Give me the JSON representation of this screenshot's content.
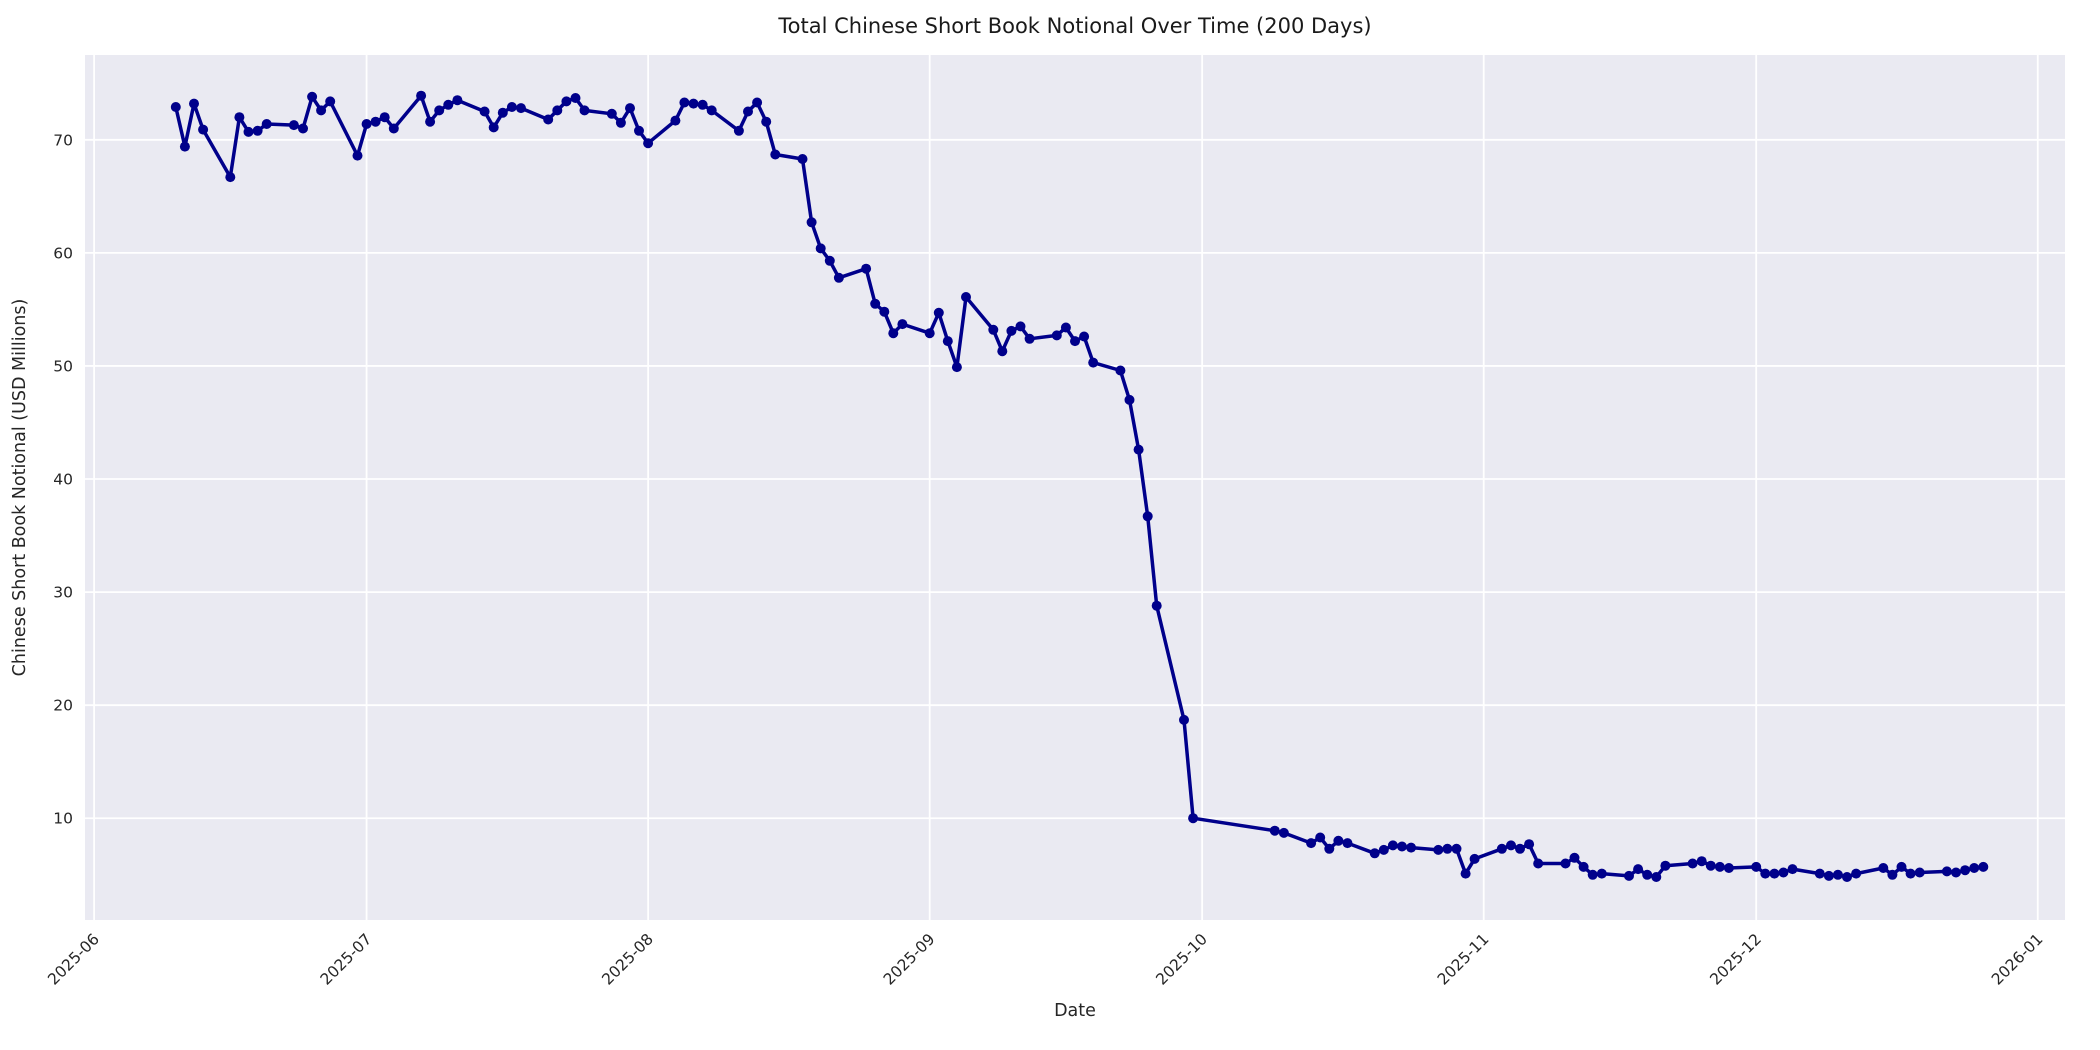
{
  "chart_data": {
    "type": "line",
    "title": "Total Chinese Short Book Notional Over Time (200 Days)",
    "xlabel": "Date",
    "ylabel": "Chinese Short Book Notional (USD Millions)",
    "grid": true,
    "legend_position": "none",
    "plot_bg": "#eaeaf2",
    "fig_bg": "#ffffff",
    "grid_color": "#ffffff",
    "line_color": "#00008b",
    "marker": "circle",
    "xlim": [
      "2025-05-31",
      "2026-01-04"
    ],
    "ylim": [
      1.0,
      77.5
    ],
    "y_ticks": [
      10,
      20,
      30,
      40,
      50,
      60,
      70
    ],
    "x_ticks": [
      {
        "date": "2025-06-01",
        "label": "2025-06"
      },
      {
        "date": "2025-07-01",
        "label": "2025-07"
      },
      {
        "date": "2025-08-01",
        "label": "2025-08"
      },
      {
        "date": "2025-09-01",
        "label": "2025-09"
      },
      {
        "date": "2025-10-01",
        "label": "2025-10"
      },
      {
        "date": "2025-11-01",
        "label": "2025-11"
      },
      {
        "date": "2025-12-01",
        "label": "2025-12"
      },
      {
        "date": "2026-01-01",
        "label": "2026-01"
      }
    ],
    "series": [
      {
        "name": "Total Chinese Short Book Notional",
        "dates": [
          "2025-06-10",
          "2025-06-11",
          "2025-06-12",
          "2025-06-13",
          "2025-06-16",
          "2025-06-17",
          "2025-06-18",
          "2025-06-19",
          "2025-06-20",
          "2025-06-23",
          "2025-06-24",
          "2025-06-25",
          "2025-06-26",
          "2025-06-27",
          "2025-06-30",
          "2025-07-01",
          "2025-07-02",
          "2025-07-03",
          "2025-07-04",
          "2025-07-07",
          "2025-07-08",
          "2025-07-09",
          "2025-07-10",
          "2025-07-11",
          "2025-07-14",
          "2025-07-15",
          "2025-07-16",
          "2025-07-17",
          "2025-07-18",
          "2025-07-21",
          "2025-07-22",
          "2025-07-23",
          "2025-07-24",
          "2025-07-25",
          "2025-07-28",
          "2025-07-29",
          "2025-07-30",
          "2025-07-31",
          "2025-08-01",
          "2025-08-04",
          "2025-08-05",
          "2025-08-06",
          "2025-08-07",
          "2025-08-08",
          "2025-08-11",
          "2025-08-12",
          "2025-08-13",
          "2025-08-14",
          "2025-08-15",
          "2025-08-18",
          "2025-08-19",
          "2025-08-20",
          "2025-08-21",
          "2025-08-22",
          "2025-08-25",
          "2025-08-26",
          "2025-08-27",
          "2025-08-28",
          "2025-08-29",
          "2025-09-01",
          "2025-09-02",
          "2025-09-03",
          "2025-09-04",
          "2025-09-05",
          "2025-09-08",
          "2025-09-09",
          "2025-09-10",
          "2025-09-11",
          "2025-09-12",
          "2025-09-15",
          "2025-09-16",
          "2025-09-17",
          "2025-09-18",
          "2025-09-19",
          "2025-09-22",
          "2025-09-23",
          "2025-09-24",
          "2025-09-25",
          "2025-09-26",
          "2025-09-29",
          "2025-09-30",
          "2025-10-09",
          "2025-10-10",
          "2025-10-13",
          "2025-10-14",
          "2025-10-15",
          "2025-10-16",
          "2025-10-17",
          "2025-10-20",
          "2025-10-21",
          "2025-10-22",
          "2025-10-23",
          "2025-10-24",
          "2025-10-27",
          "2025-10-28",
          "2025-10-29",
          "2025-10-30",
          "2025-10-31",
          "2025-11-03",
          "2025-11-04",
          "2025-11-05",
          "2025-11-06",
          "2025-11-07",
          "2025-11-10",
          "2025-11-11",
          "2025-11-12",
          "2025-11-13",
          "2025-11-14",
          "2025-11-17",
          "2025-11-18",
          "2025-11-19",
          "2025-11-20",
          "2025-11-21",
          "2025-11-24",
          "2025-11-25",
          "2025-11-26",
          "2025-11-27",
          "2025-11-28",
          "2025-12-01",
          "2025-12-02",
          "2025-12-03",
          "2025-12-04",
          "2025-12-05",
          "2025-12-08",
          "2025-12-09",
          "2025-12-10",
          "2025-12-11",
          "2025-12-12",
          "2025-12-15",
          "2025-12-16",
          "2025-12-17",
          "2025-12-18",
          "2025-12-19",
          "2025-12-22",
          "2025-12-23",
          "2025-12-24",
          "2025-12-25",
          "2025-12-26"
        ],
        "values": [
          72.9,
          69.4,
          73.2,
          70.9,
          66.7,
          72.0,
          70.7,
          70.8,
          71.4,
          71.3,
          71.0,
          73.8,
          72.6,
          73.4,
          68.6,
          71.4,
          71.6,
          72.0,
          71.0,
          73.9,
          71.6,
          72.6,
          73.1,
          73.5,
          72.5,
          71.1,
          72.4,
          72.9,
          72.8,
          71.8,
          72.6,
          73.4,
          73.7,
          72.6,
          72.3,
          71.5,
          72.8,
          70.8,
          69.7,
          71.7,
          73.3,
          73.2,
          73.1,
          72.6,
          70.8,
          72.5,
          73.3,
          71.6,
          68.7,
          68.3,
          62.7,
          60.4,
          59.3,
          57.8,
          58.6,
          55.5,
          54.8,
          52.9,
          53.7,
          52.9,
          54.7,
          52.2,
          49.9,
          56.1,
          53.2,
          51.3,
          53.1,
          53.5,
          52.4,
          52.7,
          53.4,
          52.2,
          52.6,
          50.3,
          49.6,
          47.0,
          42.6,
          36.7,
          28.8,
          18.7,
          10.0,
          8.9,
          8.7,
          7.8,
          8.3,
          7.3,
          8.0,
          7.8,
          6.9,
          7.2,
          7.6,
          7.5,
          7.4,
          7.2,
          7.3,
          7.3,
          5.1,
          6.4,
          7.3,
          7.6,
          7.3,
          7.7,
          6.0,
          6.0,
          6.5,
          5.7,
          5.0,
          5.1,
          4.9,
          5.5,
          5.0,
          4.8,
          5.8,
          6.0,
          6.2,
          5.8,
          5.7,
          5.6,
          5.7,
          5.1,
          5.1,
          5.2,
          5.5,
          5.1,
          4.9,
          5.0,
          4.8,
          5.1,
          5.6,
          5.0,
          5.7,
          5.1,
          5.2,
          5.3,
          5.2,
          5.4,
          5.6,
          5.7
        ]
      }
    ]
  }
}
